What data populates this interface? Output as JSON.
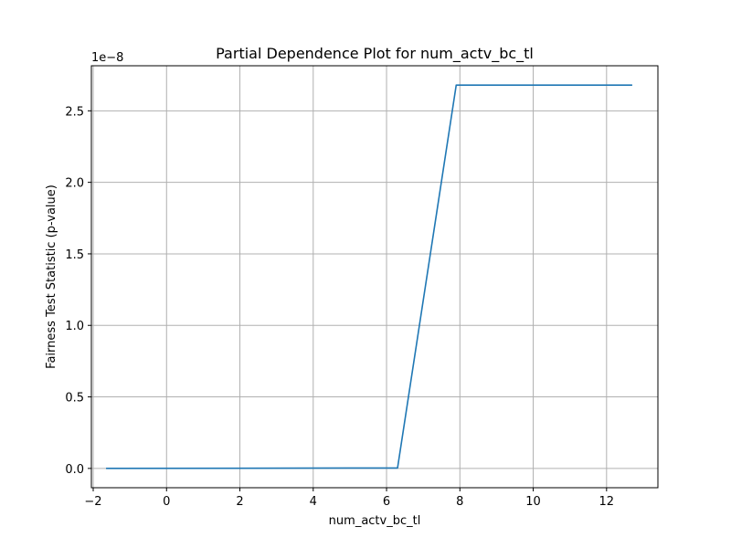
{
  "chart_data": {
    "type": "line",
    "title": "Partial Dependence Plot for num_actv_bc_tl",
    "xlabel": "num_actv_bc_tl",
    "ylabel": "Fairness Test Statistic (p-value)",
    "y_offset_label": "1e−8",
    "xlim": [
      -2.05,
      13.4
    ],
    "ylim": [
      -0.135,
      2.815
    ],
    "x_ticks": [
      -2,
      0,
      2,
      4,
      6,
      8,
      10,
      12
    ],
    "x_tick_labels": [
      "−2",
      "0",
      "2",
      "4",
      "6",
      "8",
      "10",
      "12"
    ],
    "y_ticks": [
      0.0,
      0.5,
      1.0,
      1.5,
      2.0,
      2.5
    ],
    "y_tick_labels": [
      "0.0",
      "0.5",
      "1.0",
      "1.5",
      "2.0",
      "2.5"
    ],
    "grid": true,
    "series": [
      {
        "color": "#1f77b4",
        "x": [
          -1.65,
          6.3,
          7.9,
          12.7
        ],
        "y": [
          0.0,
          0.003,
          2.68,
          2.68
        ]
      }
    ]
  }
}
